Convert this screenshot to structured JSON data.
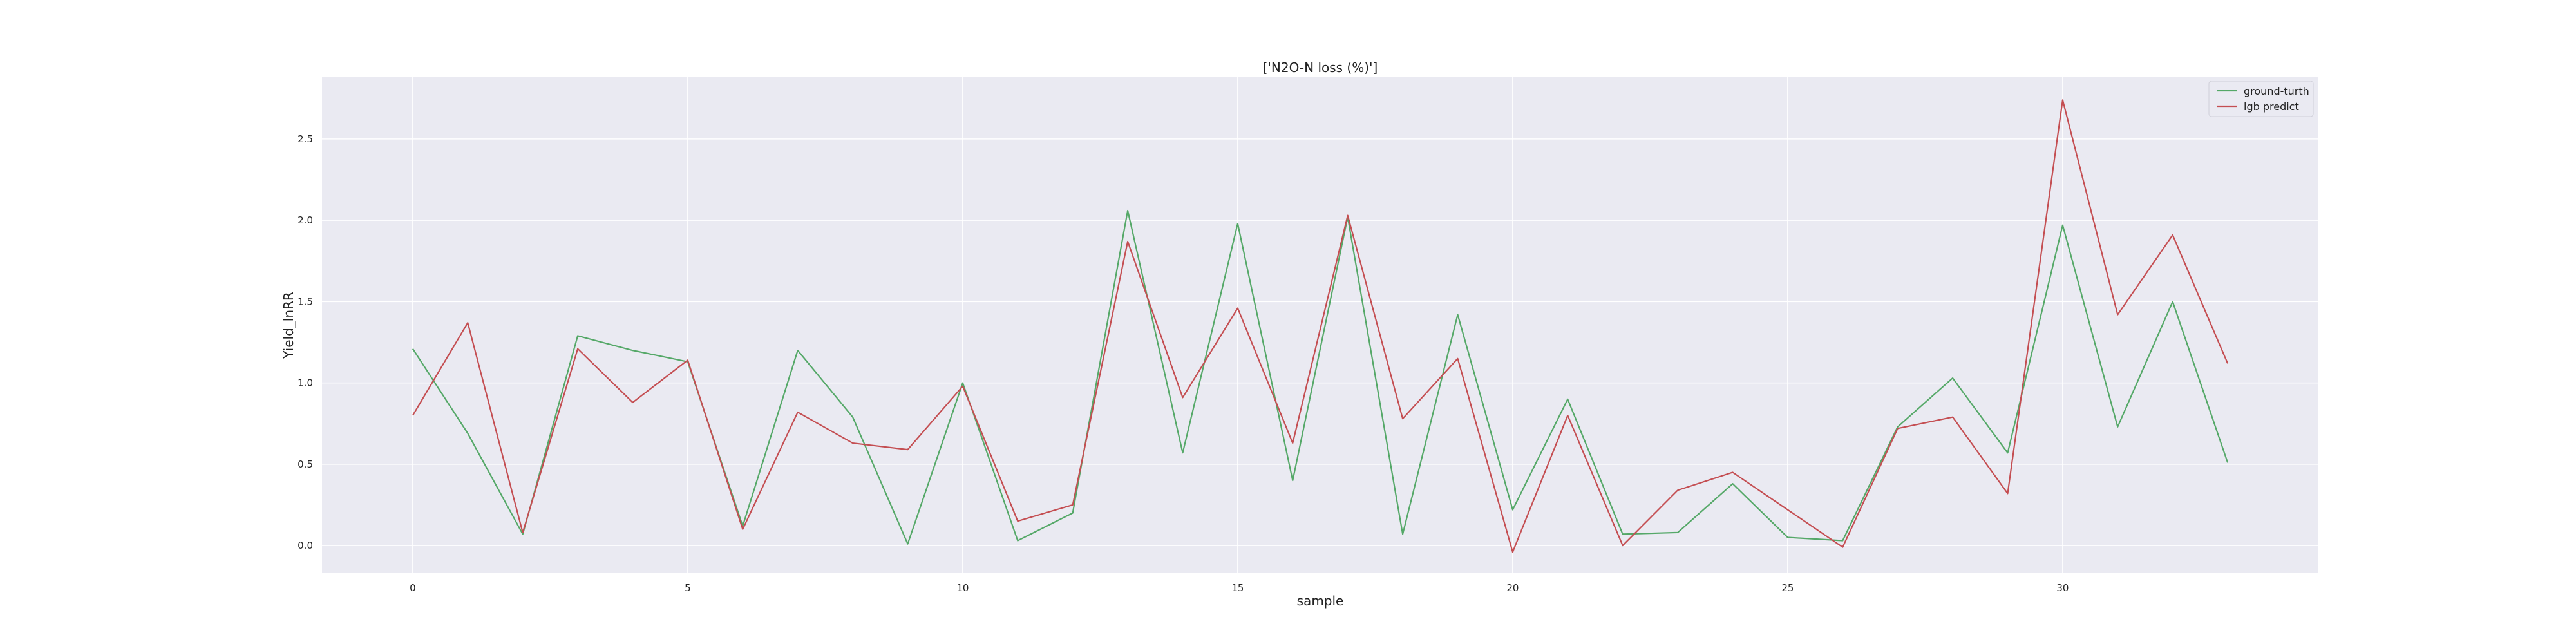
{
  "chart_data": {
    "type": "line",
    "title": "['N2O-N loss (%)']",
    "xlabel": "sample",
    "ylabel": "Yield_lnRR",
    "xlim": [
      -1.65,
      34.65
    ],
    "ylim": [
      -0.17,
      2.88
    ],
    "xticks": [
      0,
      5,
      10,
      15,
      20,
      25,
      30
    ],
    "yticks": [
      0.0,
      0.5,
      1.0,
      1.5,
      2.0,
      2.5
    ],
    "xtick_labels": [
      "0",
      "5",
      "10",
      "15",
      "20",
      "25",
      "30"
    ],
    "ytick_labels": [
      "0.0",
      "0.5",
      "1.0",
      "1.5",
      "2.0",
      "2.5"
    ],
    "grid": true,
    "legend_position": "upper right",
    "x": [
      0,
      1,
      2,
      3,
      4,
      5,
      6,
      7,
      8,
      9,
      10,
      11,
      12,
      13,
      14,
      15,
      16,
      17,
      18,
      19,
      20,
      21,
      22,
      23,
      24,
      25,
      26,
      27,
      28,
      29,
      30,
      31,
      32,
      33
    ],
    "series": [
      {
        "name": "ground-turth",
        "color": "#55a868",
        "values": [
          1.21,
          0.69,
          0.07,
          1.29,
          1.2,
          1.13,
          0.12,
          1.2,
          0.79,
          0.01,
          1.0,
          0.03,
          0.2,
          2.06,
          0.57,
          1.98,
          0.4,
          2.02,
          0.07,
          1.42,
          0.22,
          0.9,
          0.07,
          0.08,
          0.38,
          0.05,
          0.03,
          0.73,
          1.03,
          0.57,
          1.97,
          0.73,
          1.5,
          0.51
        ]
      },
      {
        "name": "lgb predict",
        "color": "#c44e52",
        "values": [
          0.8,
          1.37,
          0.08,
          1.21,
          0.88,
          1.14,
          0.1,
          0.82,
          0.63,
          0.59,
          0.98,
          0.15,
          0.25,
          1.87,
          0.91,
          1.46,
          0.63,
          2.03,
          0.78,
          1.15,
          -0.04,
          0.8,
          0.0,
          0.34,
          0.45,
          0.22,
          -0.01,
          0.72,
          0.79,
          0.32,
          2.74,
          1.42,
          1.91,
          1.12
        ]
      }
    ]
  }
}
